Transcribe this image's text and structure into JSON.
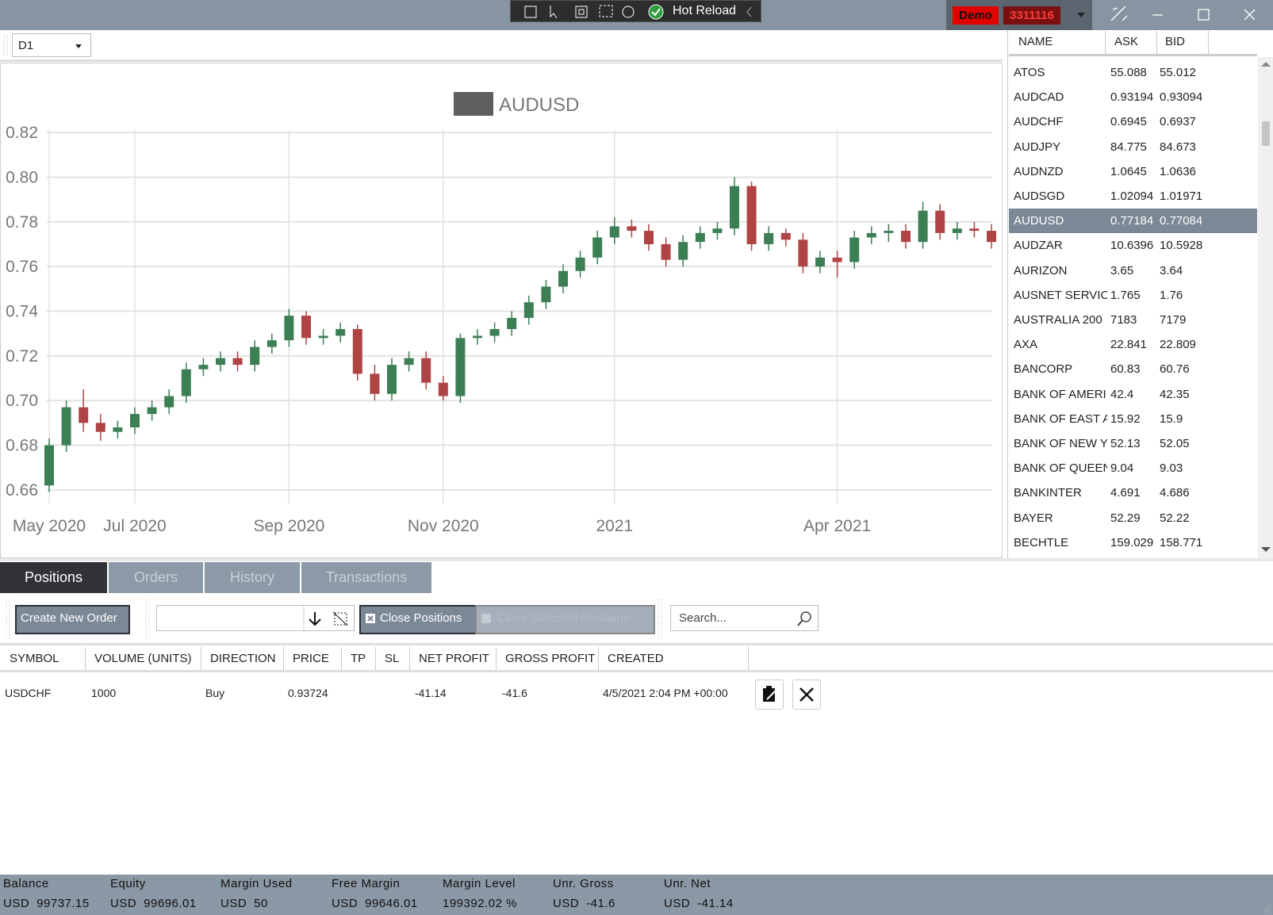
{
  "window": {
    "toolbar_label": "Hot Reload",
    "account_mode": "Demo",
    "account_number": "3311116"
  },
  "timeframe": "D1",
  "chart_data": {
    "type": "candlestick",
    "categories": [
      "May 2020",
      null,
      null,
      null,
      null,
      "Jul 2020",
      null,
      null,
      null,
      null,
      null,
      null,
      null,
      null,
      "Sep 2020",
      null,
      null,
      null,
      null,
      null,
      null,
      null,
      null,
      "Nov 2020",
      null,
      null,
      null,
      null,
      null,
      null,
      null,
      null,
      null,
      "2021",
      null,
      null,
      null,
      null,
      null,
      null,
      null,
      null,
      null,
      null,
      null,
      null,
      "Apr 2021",
      null,
      null,
      null,
      null,
      null,
      null,
      null,
      null,
      null
    ],
    "series": [
      {
        "name": "AUDUSD",
        "color": "#5f5f5f",
        "open": [
          0.662,
          0.68,
          0.697,
          0.69,
          0.686,
          0.688,
          0.694,
          0.697,
          0.702,
          0.714,
          0.716,
          0.719,
          0.716,
          0.724,
          0.727,
          0.738,
          0.728,
          0.729,
          0.732,
          0.712,
          0.703,
          0.716,
          0.719,
          0.708,
          0.702,
          0.728,
          0.729,
          0.732,
          0.737,
          0.744,
          0.751,
          0.758,
          0.764,
          0.773,
          0.778,
          0.776,
          0.77,
          0.763,
          0.771,
          0.775,
          0.777,
          0.796,
          0.77,
          0.775,
          0.772,
          0.76,
          0.764,
          0.762,
          0.773,
          0.775,
          0.776,
          0.771,
          0.785,
          0.775,
          0.777,
          0.776
        ],
        "high": [
          0.683,
          0.7,
          0.705,
          0.694,
          0.691,
          0.697,
          0.7,
          0.705,
          0.717,
          0.719,
          0.722,
          0.722,
          0.727,
          0.73,
          0.741,
          0.74,
          0.732,
          0.735,
          0.734,
          0.716,
          0.719,
          0.722,
          0.722,
          0.711,
          0.73,
          0.732,
          0.735,
          0.74,
          0.747,
          0.754,
          0.761,
          0.767,
          0.776,
          0.782,
          0.781,
          0.779,
          0.773,
          0.774,
          0.778,
          0.78,
          0.8,
          0.798,
          0.778,
          0.777,
          0.775,
          0.767,
          0.767,
          0.776,
          0.778,
          0.779,
          0.779,
          0.789,
          0.788,
          0.78,
          0.78,
          0.779
        ],
        "low": [
          0.659,
          0.677,
          0.686,
          0.682,
          0.683,
          0.685,
          0.691,
          0.694,
          0.699,
          0.711,
          0.713,
          0.713,
          0.713,
          0.721,
          0.724,
          0.725,
          0.725,
          0.726,
          0.709,
          0.7,
          0.7,
          0.713,
          0.705,
          0.7,
          0.699,
          0.725,
          0.726,
          0.729,
          0.734,
          0.741,
          0.748,
          0.755,
          0.761,
          0.77,
          0.773,
          0.767,
          0.76,
          0.76,
          0.768,
          0.772,
          0.774,
          0.767,
          0.767,
          0.769,
          0.757,
          0.757,
          0.755,
          0.759,
          0.77,
          0.771,
          0.768,
          0.768,
          0.772,
          0.772,
          0.773,
          0.768
        ],
        "close": [
          0.68,
          0.697,
          0.69,
          0.686,
          0.688,
          0.694,
          0.697,
          0.702,
          0.714,
          0.716,
          0.719,
          0.716,
          0.724,
          0.727,
          0.738,
          0.728,
          0.729,
          0.732,
          0.712,
          0.703,
          0.716,
          0.719,
          0.708,
          0.702,
          0.728,
          0.729,
          0.732,
          0.737,
          0.744,
          0.751,
          0.758,
          0.764,
          0.773,
          0.778,
          0.776,
          0.77,
          0.763,
          0.771,
          0.775,
          0.777,
          0.796,
          0.77,
          0.775,
          0.772,
          0.76,
          0.764,
          0.762,
          0.773,
          0.775,
          0.776,
          0.771,
          0.785,
          0.775,
          0.777,
          0.776,
          0.771
        ]
      }
    ],
    "up_color": "#3d7f55",
    "down_color": "#b04444",
    "ylim": [
      0.655,
      0.825
    ],
    "yticks": [
      0.66,
      0.68,
      {
        "value": 0.7,
        "label": "0.70"
      },
      0.72,
      0.74,
      0.76,
      0.78,
      {
        "value": 0.8,
        "label": "0.80"
      },
      0.82
    ],
    "grid": true
  },
  "watchlist": {
    "columns": [
      "NAME",
      "ASK",
      "BID"
    ],
    "selected": "AUDUSD",
    "rows": [
      [
        "ATOS",
        "55.088",
        "55.012"
      ],
      [
        "AUDCAD",
        "0.93194",
        "0.93094"
      ],
      [
        "AUDCHF",
        "0.6945",
        "0.6937"
      ],
      [
        "AUDJPY",
        "84.775",
        "84.673"
      ],
      [
        "AUDNZD",
        "1.0645",
        "1.0636"
      ],
      [
        "AUDSGD",
        "1.02094",
        "1.01971"
      ],
      [
        "AUDUSD",
        "0.77184",
        "0.77084"
      ],
      [
        "AUDZAR",
        "10.6396",
        "10.5928"
      ],
      [
        "AURIZON",
        "3.65",
        "3.64"
      ],
      [
        "AUSNET SERVICE",
        "1.765",
        "1.76"
      ],
      [
        "AUSTRALIA 200",
        "7183",
        "7179"
      ],
      [
        "AXA",
        "22.841",
        "22.809"
      ],
      [
        "BANCORP",
        "60.83",
        "60.76"
      ],
      [
        "BANK OF AMERI",
        "42.4",
        "42.35"
      ],
      [
        "BANK OF EAST A",
        "15.92",
        "15.9"
      ],
      [
        "BANK OF NEW Y",
        "52.13",
        "52.05"
      ],
      [
        "BANK OF QUEEN",
        "9.04",
        "9.03"
      ],
      [
        "BANKINTER",
        "4.691",
        "4.686"
      ],
      [
        "BAYER",
        "52.29",
        "52.22"
      ],
      [
        "BECHTLE",
        "159.029",
        "158.771"
      ]
    ]
  },
  "tabs": [
    "Positions",
    "Orders",
    "History",
    "Transactions"
  ],
  "toolbar": {
    "create": "Create New Order",
    "close": "Close Positions",
    "close_selected": "Close Selected Positions",
    "search": "Search..."
  },
  "positions": {
    "columns": [
      "SYMBOL",
      "VOLUME (UNITS)",
      "DIRECTION",
      "PRICE",
      "TP",
      "SL",
      "NET PROFIT",
      "GROSS PROFIT",
      "CREATED"
    ],
    "rows": [
      [
        "USDCHF",
        "1000",
        "Buy",
        "0.93724",
        null,
        null,
        "-41.14",
        "-41.6",
        "4/5/2021 2:04 PM +00:00"
      ]
    ]
  },
  "status_bar": [
    {
      "label": "Balance",
      "currency": "USD",
      "value": "99737.15"
    },
    {
      "label": "Equity",
      "currency": "USD",
      "value": "99696.01"
    },
    {
      "label": "Margin Used",
      "currency": "USD",
      "value": "50"
    },
    {
      "label": "Free Margin",
      "currency": "USD",
      "value": "99646.01"
    },
    {
      "label": "Margin Level",
      "value": "199392.02 %"
    },
    {
      "label": "Unr. Gross",
      "currency": "USD",
      "value": "-41.6"
    },
    {
      "label": "Unr. Net",
      "currency": "USD",
      "value": "-41.14"
    }
  ]
}
